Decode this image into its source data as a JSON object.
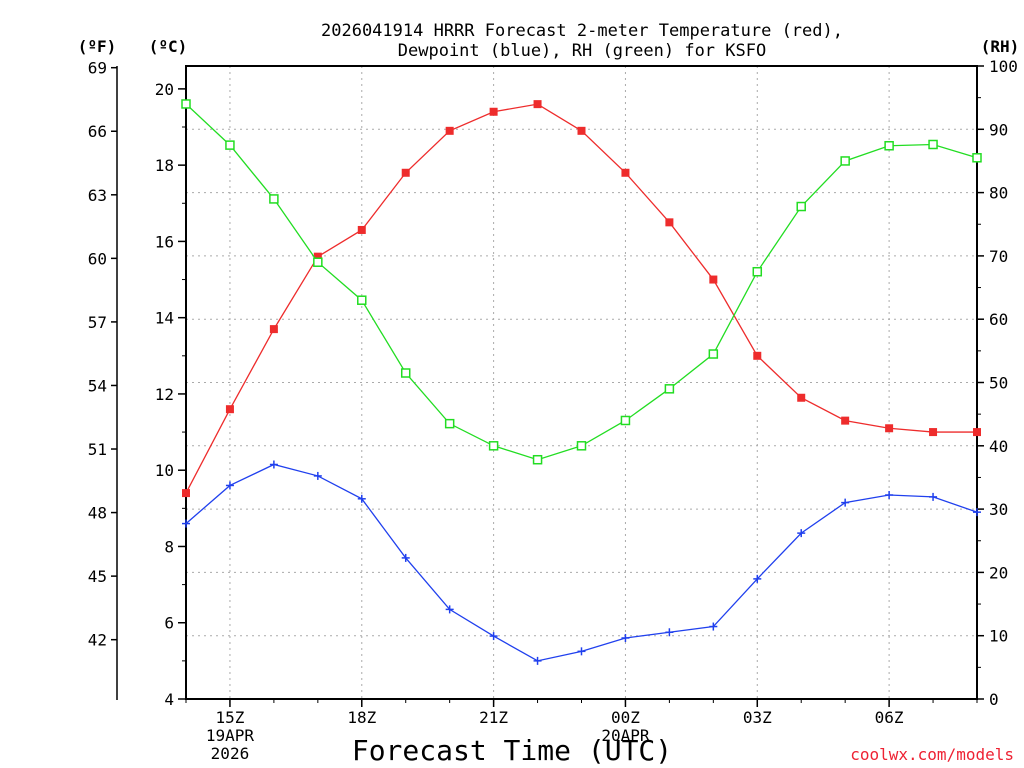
{
  "chart_data": {
    "type": "line",
    "title_line1": "2026041914 HRRR Forecast 2-meter Temperature (red),",
    "title_line2": "Dewpoint (blue), RH (green) for KSFO",
    "xlabel": "Forecast Time (UTC)",
    "credit": "coolwx.com/models",
    "x_hours": [
      0,
      1,
      2,
      3,
      4,
      5,
      6,
      7,
      8,
      9,
      10,
      11,
      12,
      13,
      14,
      15,
      16,
      17,
      18
    ],
    "x_ticks": [
      {
        "hour": 1,
        "lines": [
          "15Z",
          "19APR",
          "2026"
        ]
      },
      {
        "hour": 4,
        "lines": [
          "18Z"
        ]
      },
      {
        "hour": 7,
        "lines": [
          "21Z"
        ]
      },
      {
        "hour": 10,
        "lines": [
          "00Z",
          "20APR"
        ]
      },
      {
        "hour": 13,
        "lines": [
          "03Z"
        ]
      },
      {
        "hour": 16,
        "lines": [
          "06Z"
        ]
      }
    ],
    "y_celsius": {
      "label": "(ºC)",
      "range": [
        4,
        20.6
      ],
      "ticks": [
        "4",
        "6",
        "8",
        "10",
        "12",
        "14",
        "16",
        "18",
        "20"
      ]
    },
    "y_fahrenheit": {
      "label": "(ºF)",
      "ticks": [
        "42",
        "45",
        "48",
        "51",
        "54",
        "57",
        "60",
        "63",
        "66",
        "69"
      ]
    },
    "y_rh": {
      "label": "(RH)",
      "range": [
        0,
        100
      ],
      "ticks": [
        "0",
        "10",
        "20",
        "30",
        "40",
        "50",
        "60",
        "70",
        "80",
        "90",
        "100"
      ]
    },
    "series": [
      {
        "name": "Temperature",
        "unit": "C",
        "color": "#ee2c2c",
        "marker": "filled-square",
        "values": [
          9.4,
          11.6,
          13.7,
          15.6,
          16.3,
          17.8,
          18.9,
          19.4,
          19.6,
          18.9,
          17.8,
          16.5,
          15.0,
          13.0,
          11.9,
          11.3,
          11.1,
          11.0,
          11.0
        ]
      },
      {
        "name": "Dewpoint",
        "unit": "C",
        "color": "#2040ee",
        "marker": "plus",
        "values": [
          8.6,
          9.6,
          10.15,
          9.85,
          9.25,
          7.7,
          6.35,
          5.65,
          5.0,
          5.25,
          5.6,
          5.75,
          5.9,
          7.15,
          8.35,
          9.15,
          9.35,
          9.3,
          8.9
        ]
      },
      {
        "name": "RH",
        "unit": "%",
        "color": "#22dd22",
        "marker": "open-square",
        "values": [
          94.0,
          87.5,
          79.0,
          69.0,
          63.0,
          51.5,
          43.5,
          40.0,
          37.8,
          40.0,
          44.0,
          49.0,
          54.5,
          67.5,
          77.8,
          85.0,
          87.4,
          87.6,
          85.5
        ]
      }
    ]
  }
}
